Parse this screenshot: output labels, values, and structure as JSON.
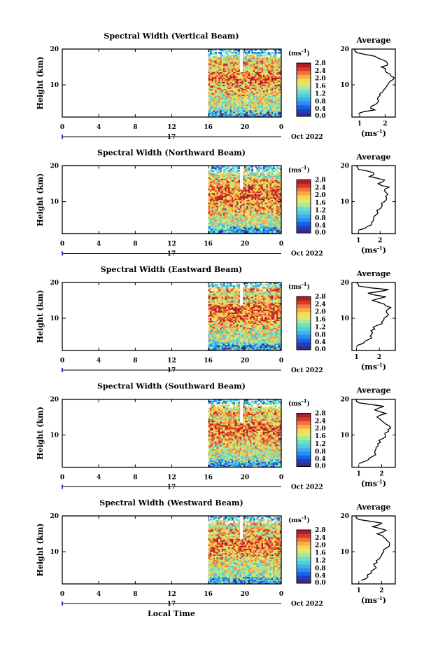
{
  "colors": {
    "scale": [
      "#3b2a8c",
      "#1f3fbf",
      "#1763e6",
      "#2a8ef0",
      "#3cb0f0",
      "#50cfe0",
      "#6fe0c4",
      "#a6ea9a",
      "#dcea6e",
      "#f8d656",
      "#f9ad45",
      "#f0753a",
      "#d9382c",
      "#b21e28"
    ]
  },
  "shared": {
    "date_label": "Oct 2022",
    "day_label": "17",
    "xlabel": "Local Time",
    "avg_title": "Average",
    "cb_unit": "(ms",
    "cb_unit_exp": "-1",
    "cb_unit_close": ")",
    "avg_unit": "(ms",
    "avg_unit_exp": "-1",
    "avg_unit_close": ")"
  },
  "chart_data": [
    {
      "type": "heatmap",
      "title": "Spectral Width (Vertical Beam)",
      "ylabel": "Height (km)",
      "x_ticks": [
        "0",
        "4",
        "8",
        "12",
        "16",
        "20",
        "0"
      ],
      "xlim": [
        0,
        24
      ],
      "y_ticks": [
        "20",
        "10"
      ],
      "ylim": [
        1,
        20
      ],
      "data_start_hour": 16,
      "gap_hour": 19.6,
      "colorbar": {
        "unit": "ms^-1",
        "ticks": [
          "2.8",
          "2.4",
          "2.0",
          "1.6",
          "1.2",
          "0.8",
          "0.4",
          "0.0"
        ],
        "range": [
          0,
          2.8
        ]
      },
      "average": {
        "xlim": [
          0.7,
          2.4
        ],
        "x_ticks": [
          "1",
          "2"
        ],
        "y_ticks": [
          "20",
          "10"
        ],
        "height": [
          2,
          3,
          4,
          5,
          6,
          7,
          8,
          9,
          10,
          11,
          12,
          13,
          14,
          15,
          16,
          17,
          18,
          19,
          20
        ],
        "value": [
          0.95,
          1.6,
          1.45,
          1.7,
          1.7,
          1.8,
          1.9,
          2.0,
          2.1,
          2.2,
          2.35,
          2.2,
          2.0,
          1.85,
          2.1,
          1.9,
          1.6,
          0.9,
          0.8
        ]
      }
    },
    {
      "type": "heatmap",
      "title": "Spectral Width (Northward Beam)",
      "ylabel": "Height (km)",
      "x_ticks": [
        "0",
        "4",
        "8",
        "12",
        "16",
        "20",
        "0"
      ],
      "xlim": [
        0,
        24
      ],
      "y_ticks": [
        "20",
        "10"
      ],
      "ylim": [
        1,
        20
      ],
      "data_start_hour": 16,
      "gap_hour": 19.6,
      "colorbar": {
        "unit": "ms^-1",
        "ticks": [
          "2.8",
          "2.4",
          "2.0",
          "1.6",
          "1.2",
          "0.8",
          "0.4",
          "0.0"
        ],
        "range": [
          0,
          2.8
        ]
      },
      "average": {
        "xlim": [
          0.7,
          2.7
        ],
        "x_ticks": [
          "1",
          "2"
        ],
        "y_ticks": [
          "20",
          "10"
        ],
        "height": [
          2,
          3,
          4,
          5,
          6,
          7,
          8,
          9,
          10,
          11,
          12,
          13,
          14,
          15,
          16,
          17,
          18,
          19,
          20
        ],
        "value": [
          1.0,
          1.4,
          1.6,
          1.7,
          1.75,
          1.9,
          2.0,
          2.1,
          2.2,
          2.3,
          2.35,
          2.2,
          2.4,
          1.9,
          2.2,
          1.5,
          1.7,
          1.0,
          0.9
        ]
      }
    },
    {
      "type": "heatmap",
      "title": "Spectral Width (Eastward Beam)",
      "ylabel": "Height (km)",
      "x_ticks": [
        "0",
        "4",
        "8",
        "12",
        "16",
        "20",
        "0"
      ],
      "xlim": [
        0,
        24
      ],
      "y_ticks": [
        "20",
        "10"
      ],
      "ylim": [
        1,
        20
      ],
      "data_start_hour": 16,
      "gap_hour": 19.6,
      "colorbar": {
        "unit": "ms^-1",
        "ticks": [
          "2.8",
          "2.4",
          "2.0",
          "1.6",
          "1.2",
          "0.8",
          "0.4",
          "0.0"
        ],
        "range": [
          0,
          2.8
        ]
      },
      "average": {
        "xlim": [
          0.8,
          2.7
        ],
        "x_ticks": [
          "1",
          "2"
        ],
        "y_ticks": [
          "20",
          "10"
        ],
        "height": [
          2,
          3,
          4,
          5,
          6,
          7,
          8,
          9,
          10,
          11,
          12,
          13,
          14,
          15,
          16,
          17,
          18,
          19,
          20
        ],
        "value": [
          1.0,
          1.3,
          1.5,
          1.6,
          1.7,
          1.8,
          1.9,
          2.1,
          2.2,
          2.4,
          2.3,
          2.5,
          2.2,
          1.7,
          2.3,
          1.5,
          2.4,
          1.1,
          1.0
        ]
      }
    },
    {
      "type": "heatmap",
      "title": "Spectral Width (Southward Beam)",
      "ylabel": "Height (km)",
      "x_ticks": [
        "0",
        "4",
        "8",
        "12",
        "16",
        "20",
        "0"
      ],
      "xlim": [
        0,
        24
      ],
      "y_ticks": [
        "20",
        "10"
      ],
      "ylim": [
        1,
        20
      ],
      "data_start_hour": 16,
      "gap_hour": 19.6,
      "colorbar": {
        "unit": "ms^-1",
        "ticks": [
          "2.8",
          "2.4",
          "2.0",
          "1.6",
          "1.2",
          "0.8",
          "0.4",
          "0.0"
        ],
        "range": [
          0,
          2.8
        ]
      },
      "average": {
        "xlim": [
          0.7,
          2.6
        ],
        "x_ticks": [
          "1",
          "2"
        ],
        "y_ticks": [
          "20",
          "10"
        ],
        "height": [
          2,
          3,
          4,
          5,
          6,
          7,
          8,
          9,
          10,
          11,
          12,
          13,
          14,
          15,
          16,
          17,
          18,
          19,
          20
        ],
        "value": [
          1.0,
          1.4,
          1.6,
          1.7,
          1.75,
          1.85,
          1.95,
          2.05,
          2.15,
          2.3,
          2.4,
          2.2,
          2.0,
          1.8,
          2.2,
          1.7,
          2.1,
          1.0,
          0.9
        ]
      }
    },
    {
      "type": "heatmap",
      "title": "Spectral Width (Westward Beam)",
      "ylabel": "Height (km)",
      "x_ticks": [
        "0",
        "4",
        "8",
        "12",
        "16",
        "20",
        "0"
      ],
      "xlim": [
        0,
        24
      ],
      "y_ticks": [
        "20",
        "10"
      ],
      "ylim": [
        1,
        20
      ],
      "data_start_hour": 16,
      "gap_hour": 19.6,
      "colorbar": {
        "unit": "ms^-1",
        "ticks": [
          "2.8",
          "2.4",
          "2.0",
          "1.6",
          "1.2",
          "0.8",
          "0.4",
          "0.0"
        ],
        "range": [
          0,
          2.8
        ]
      },
      "average": {
        "xlim": [
          0.7,
          2.6
        ],
        "x_ticks": [
          "1",
          "2"
        ],
        "y_ticks": [
          "20",
          "10"
        ],
        "height": [
          2,
          3,
          4,
          5,
          6,
          7,
          8,
          9,
          10,
          11,
          12,
          13,
          14,
          15,
          16,
          17,
          18,
          19,
          20
        ],
        "value": [
          1.1,
          1.4,
          1.55,
          1.65,
          1.7,
          1.8,
          1.9,
          2.0,
          2.1,
          2.2,
          2.35,
          2.25,
          2.1,
          1.8,
          2.2,
          1.6,
          2.0,
          1.0,
          0.9
        ]
      }
    }
  ]
}
